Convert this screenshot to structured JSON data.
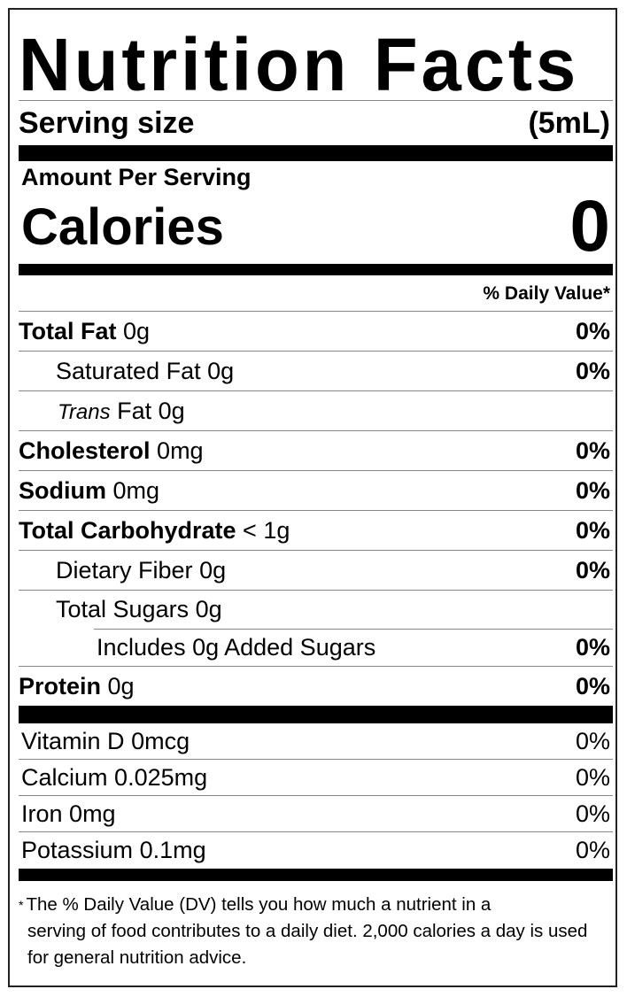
{
  "title": "Nutrition Facts",
  "serving": {
    "label": "Serving size",
    "value": "(5mL)"
  },
  "amount_per_serving": "Amount Per Serving",
  "calories": {
    "label": "Calories",
    "value": "0"
  },
  "dv_header": "% Daily Value*",
  "nutrients": [
    {
      "name": "Total Fat",
      "amount": "0g",
      "dv": "0%"
    },
    {
      "name": "Saturated Fat",
      "amount": "0g",
      "dv": "0%"
    },
    {
      "name": "Trans",
      "name_suffix": "Fat",
      "amount": "0g",
      "dv": ""
    },
    {
      "name": "Cholesterol",
      "amount": "0mg",
      "dv": "0%"
    },
    {
      "name": "Sodium",
      "amount": "0mg",
      "dv": "0%"
    },
    {
      "name": "Total Carbohydrate",
      "amount": "< 1g",
      "dv": "0%"
    },
    {
      "name": "Dietary Fiber",
      "amount": "0g",
      "dv": "0%"
    },
    {
      "name": "Total Sugars",
      "amount": "0g",
      "dv": ""
    },
    {
      "name": "Includes 0g Added Sugars",
      "amount": "",
      "dv": "0%"
    },
    {
      "name": "Protein",
      "amount": "0g",
      "dv": "0%"
    }
  ],
  "vitamins": [
    {
      "name": "Vitamin D",
      "amount": "0mcg",
      "dv": "0%"
    },
    {
      "name": "Calcium",
      "amount": "0.025mg",
      "dv": "0%"
    },
    {
      "name": "Iron",
      "amount": "0mg",
      "dv": "0%"
    },
    {
      "name": "Potassium",
      "amount": "0.1mg",
      "dv": "0%"
    }
  ],
  "footnote": {
    "star": "*",
    "line1": "The % Daily Value (DV) tells you how much a nutrient in a",
    "rest": "serving of food contributes to a daily diet. 2,000 calories a day is used for general nutrition advice."
  }
}
